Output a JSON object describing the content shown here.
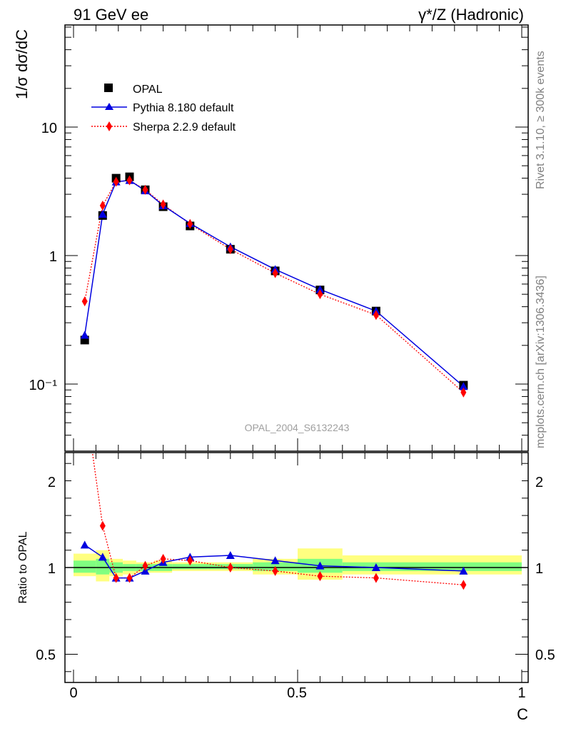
{
  "header": {
    "left": "91 GeV ee",
    "right": "γ*/Z (Hadronic)"
  },
  "side_labels": {
    "rivet": "Rivet 3.1.10, ≥ 300k events",
    "mcplots": "mcplots.cern.ch [arXiv:1306.3436]"
  },
  "analysis_label": "OPAL_2004_S6132243",
  "colors": {
    "data": "#000000",
    "pythia": "#0000e0",
    "sherpa": "#ff0000",
    "band_inner": "#80ff80",
    "band_outer": "#ffff80"
  },
  "chart_data": [
    {
      "type": "line",
      "name": "main",
      "ylabel": "1/σ dσ/dC",
      "yscale": "log",
      "ylim": [
        0.03,
        60
      ],
      "xlim": [
        -0.02,
        1.02
      ],
      "ytick_labels": [
        "10",
        "1",
        "10⁻¹"
      ],
      "legend_position": "top-left",
      "series": [
        {
          "name": "OPAL",
          "marker": "square",
          "x": [
            0.025,
            0.065,
            0.095,
            0.125,
            0.16,
            0.2,
            0.26,
            0.35,
            0.45,
            0.55,
            0.675,
            0.87
          ],
          "values": [
            0.22,
            2.05,
            4.0,
            4.1,
            3.25,
            2.4,
            1.7,
            1.12,
            0.76,
            0.54,
            0.37,
            0.098
          ]
        },
        {
          "name": "Pythia 8.180 default",
          "marker": "triangle",
          "x": [
            0.025,
            0.065,
            0.095,
            0.125,
            0.16,
            0.2,
            0.26,
            0.35,
            0.45,
            0.55,
            0.675,
            0.87
          ],
          "values": [
            0.24,
            2.1,
            3.75,
            3.85,
            3.2,
            2.45,
            1.78,
            1.17,
            0.78,
            0.545,
            0.37,
            0.096
          ]
        },
        {
          "name": "Sherpa 2.2.9 default",
          "marker": "diamond",
          "x": [
            0.025,
            0.065,
            0.095,
            0.125,
            0.16,
            0.2,
            0.26,
            0.35,
            0.45,
            0.55,
            0.675,
            0.87
          ],
          "values": [
            0.44,
            2.45,
            3.75,
            3.85,
            3.25,
            2.5,
            1.76,
            1.12,
            0.73,
            0.5,
            0.345,
            0.086
          ]
        }
      ]
    },
    {
      "type": "line",
      "name": "ratio",
      "ylabel": "Ratio to OPAL",
      "xlabel": "C",
      "yscale": "linear",
      "ylim": [
        0.35,
        2.25
      ],
      "xlim": [
        -0.02,
        1.02
      ],
      "ytick_labels": [
        "2",
        "1",
        "0.5"
      ],
      "xtick_labels": [
        "0",
        "0.5",
        "1"
      ],
      "series": [
        {
          "name": "Pythia 8.180 default",
          "x": [
            0.025,
            0.065,
            0.095,
            0.125,
            0.16,
            0.2,
            0.26,
            0.35,
            0.45,
            0.55,
            0.675,
            0.87
          ],
          "values": [
            1.13,
            1.06,
            0.94,
            0.94,
            0.98,
            1.03,
            1.06,
            1.07,
            1.04,
            1.01,
            1.0,
            0.98
          ]
        },
        {
          "name": "Sherpa 2.2.9 default",
          "x": [
            0.025,
            0.065,
            0.095,
            0.125,
            0.16,
            0.2,
            0.26,
            0.35,
            0.45,
            0.55,
            0.675,
            0.87
          ],
          "values": [
            1.98,
            1.24,
            0.94,
            0.94,
            1.01,
            1.05,
            1.04,
            1.0,
            0.98,
            0.95,
            0.94,
            0.9
          ]
        }
      ],
      "uncertainty_bands": [
        {
          "x0": 0.0,
          "x1": 0.05,
          "inner": [
            0.97,
            1.04
          ],
          "outer": [
            0.95,
            1.08
          ]
        },
        {
          "x0": 0.05,
          "x1": 0.08,
          "inner": [
            0.96,
            1.05
          ],
          "outer": [
            0.92,
            1.1
          ]
        },
        {
          "x0": 0.08,
          "x1": 0.11,
          "inner": [
            0.97,
            1.03
          ],
          "outer": [
            0.95,
            1.05
          ]
        },
        {
          "x0": 0.11,
          "x1": 0.14,
          "inner": [
            0.98,
            1.02
          ],
          "outer": [
            0.96,
            1.04
          ]
        },
        {
          "x0": 0.14,
          "x1": 0.18,
          "inner": [
            0.98,
            1.02
          ],
          "outer": [
            0.97,
            1.03
          ]
        },
        {
          "x0": 0.18,
          "x1": 0.22,
          "inner": [
            0.98,
            1.02
          ],
          "outer": [
            0.97,
            1.04
          ]
        },
        {
          "x0": 0.22,
          "x1": 0.3,
          "inner": [
            0.99,
            1.02
          ],
          "outer": [
            0.98,
            1.03
          ]
        },
        {
          "x0": 0.3,
          "x1": 0.4,
          "inner": [
            0.99,
            1.02
          ],
          "outer": [
            0.98,
            1.03
          ]
        },
        {
          "x0": 0.4,
          "x1": 0.5,
          "inner": [
            0.98,
            1.03
          ],
          "outer": [
            0.96,
            1.05
          ]
        },
        {
          "x0": 0.5,
          "x1": 0.6,
          "inner": [
            0.97,
            1.05
          ],
          "outer": [
            0.93,
            1.11
          ]
        },
        {
          "x0": 0.6,
          "x1": 1.0,
          "inner": [
            0.98,
            1.03
          ],
          "outer": [
            0.96,
            1.07
          ]
        }
      ]
    }
  ]
}
